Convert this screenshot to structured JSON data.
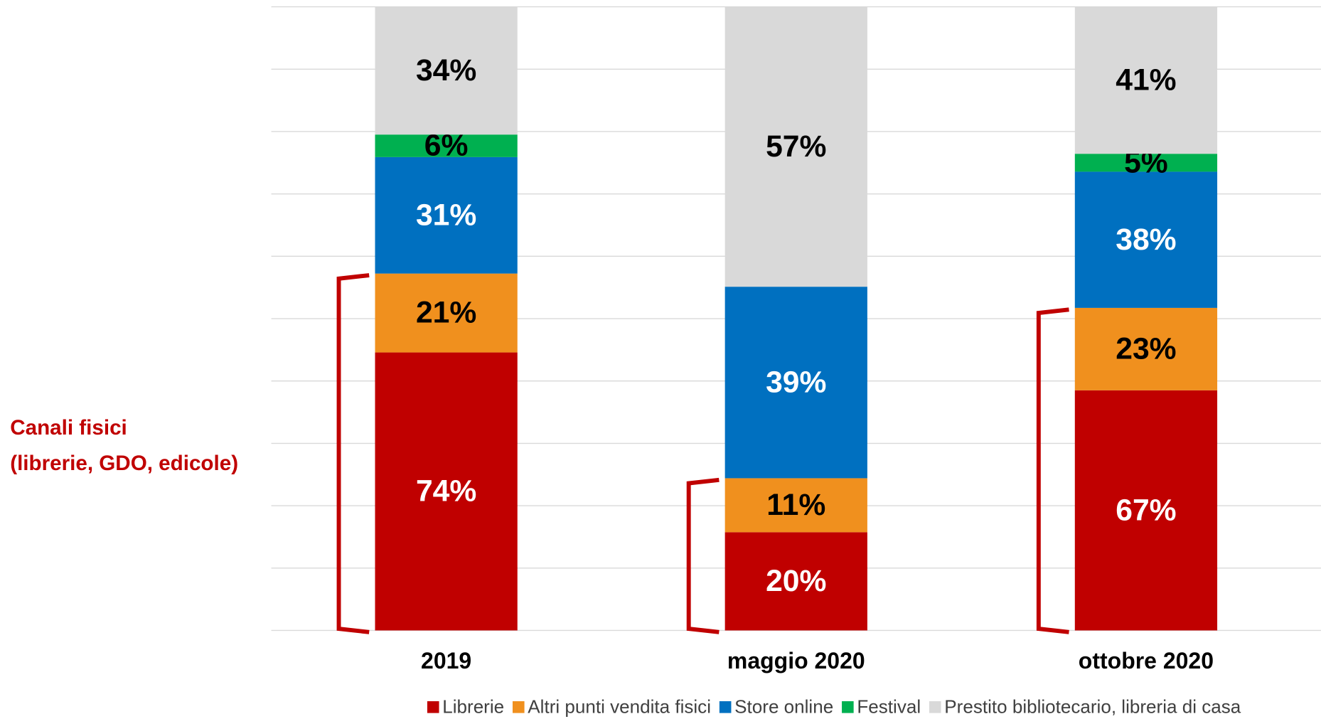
{
  "chart_data": {
    "type": "stacked_bar",
    "stack_mode": "percent",
    "categories": [
      "2019",
      "maggio 2020",
      "ottobre 2020"
    ],
    "series": [
      {
        "name": "Librerie",
        "color": "#c00000",
        "label_color": "#ffffff",
        "values": [
          74,
          20,
          67
        ],
        "value_labels": [
          "74%",
          "20%",
          "67%"
        ]
      },
      {
        "name": "Altri punti vendita fisici",
        "color": "#f0901e",
        "label_color": "#000000",
        "values": [
          21,
          11,
          23
        ],
        "value_labels": [
          "21%",
          "11%",
          "23%"
        ]
      },
      {
        "name": "Store online",
        "color": "#0070c0",
        "label_color": "#ffffff",
        "values": [
          31,
          39,
          38
        ],
        "value_labels": [
          "31%",
          "39%",
          "38%"
        ]
      },
      {
        "name": "Festival",
        "color": "#00b050",
        "label_color": "#000000",
        "values": [
          6,
          null,
          5
        ],
        "value_labels": [
          "6%",
          null,
          "5%"
        ]
      },
      {
        "name": "Prestito bibliotecario, libreria di casa",
        "color": "#d9d9d9",
        "label_color": "#000000",
        "values": [
          34,
          57,
          41
        ],
        "value_labels": [
          "34%",
          "57%",
          "41%"
        ]
      }
    ],
    "ylim": [
      0,
      100
    ],
    "yticks": [
      0,
      10,
      20,
      30,
      40,
      50,
      60,
      70,
      80,
      90,
      100
    ],
    "grid": true,
    "legend": "bottom",
    "annotation": {
      "lines": [
        "Canali fisici",
        "(librerie, GDO, edicole)"
      ],
      "color": "#c00000"
    }
  }
}
